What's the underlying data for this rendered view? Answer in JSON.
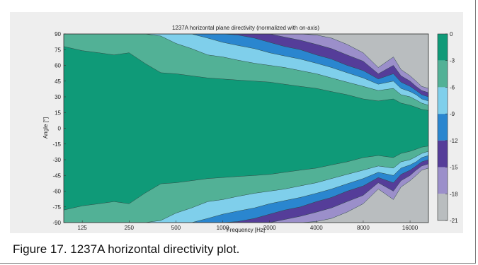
{
  "caption": "Figure 17. 1237A horizontal directivity plot.",
  "chart_data": {
    "type": "heatmap",
    "title": "1237A horizontal plane directivity (normalized with on-axis)",
    "xlabel": "Frequency [Hz]",
    "ylabel": "Angle [°]",
    "x_scale": "log",
    "xlim": [
      95,
      21000
    ],
    "ylim": [
      -90,
      90
    ],
    "x_ticks": [
      125,
      250,
      500,
      1000,
      2000,
      4000,
      8000,
      16000
    ],
    "x_tick_labels": [
      "125",
      "250",
      "500",
      "1000",
      "2000",
      "4000",
      "8000",
      "16000"
    ],
    "y_ticks": [
      90,
      75,
      60,
      45,
      30,
      15,
      0,
      -15,
      -30,
      -45,
      -60,
      -75,
      -90
    ],
    "y_tick_labels": [
      "90",
      "75",
      "60",
      "45",
      "30",
      "15",
      "0",
      "-15",
      "-30",
      "-45",
      "-60",
      "-75",
      "-90"
    ],
    "colorbar": {
      "ticks": [
        0,
        -3,
        -6,
        -9,
        -12,
        -15,
        -18,
        -21
      ],
      "tick_labels": [
        "0",
        "-3",
        "-6",
        "-9",
        "-12",
        "-15",
        "-18",
        "-21"
      ],
      "levels": [
        {
          "range": [
            -3,
            0
          ],
          "color": "#0f9a78"
        },
        {
          "range": [
            -6,
            -3
          ],
          "color": "#52b196"
        },
        {
          "range": [
            -9,
            -6
          ],
          "color": "#7fcfeb"
        },
        {
          "range": [
            -12,
            -9
          ],
          "color": "#2a86cf"
        },
        {
          "range": [
            -15,
            -12
          ],
          "color": "#553d99"
        },
        {
          "range": [
            -18,
            -15
          ],
          "color": "#9b8fca"
        },
        {
          "range": [
            -21,
            -18
          ],
          "color": "#b9bdbf"
        }
      ]
    },
    "contours_deg": {
      "frequency": [
        95,
        125,
        160,
        200,
        250,
        315,
        400,
        500,
        630,
        800,
        1000,
        1250,
        1600,
        2000,
        2500,
        3150,
        4000,
        5000,
        6300,
        8000,
        10000,
        12500,
        14000,
        16000,
        17500,
        19000,
        21000
      ],
      "levels_db": [
        -3,
        -6,
        -9,
        -12,
        -15,
        -18
      ],
      "angles": [
        [
          78,
          74,
          72,
          70,
          72,
          62,
          53,
          52,
          50,
          48,
          47,
          46,
          45,
          44,
          42,
          40,
          38,
          35,
          32,
          28,
          26,
          28,
          24,
          22,
          20,
          18,
          17
        ],
        [
          90,
          90,
          90,
          90,
          90,
          90,
          88,
          81,
          76,
          70,
          68,
          65,
          62,
          60,
          58,
          55,
          52,
          48,
          44,
          40,
          36,
          38,
          32,
          30,
          27,
          24,
          22
        ],
        [
          90,
          90,
          90,
          90,
          90,
          90,
          90,
          90,
          90,
          86,
          82,
          79,
          76,
          72,
          69,
          66,
          62,
          58,
          53,
          48,
          42,
          45,
          38,
          35,
          32,
          28,
          26
        ],
        [
          90,
          90,
          90,
          90,
          90,
          90,
          90,
          90,
          90,
          90,
          90,
          89,
          86,
          82,
          78,
          75,
          70,
          66,
          60,
          55,
          47,
          52,
          44,
          40,
          36,
          32,
          30
        ],
        [
          90,
          90,
          90,
          90,
          90,
          90,
          90,
          90,
          90,
          90,
          90,
          90,
          90,
          90,
          87,
          84,
          80,
          76,
          70,
          64,
          52,
          60,
          50,
          45,
          40,
          36,
          34
        ],
        [
          90,
          90,
          90,
          90,
          90,
          90,
          90,
          90,
          90,
          90,
          90,
          90,
          90,
          90,
          90,
          90,
          89,
          86,
          80,
          72,
          58,
          68,
          56,
          50,
          45,
          40,
          38
        ]
      ]
    }
  }
}
